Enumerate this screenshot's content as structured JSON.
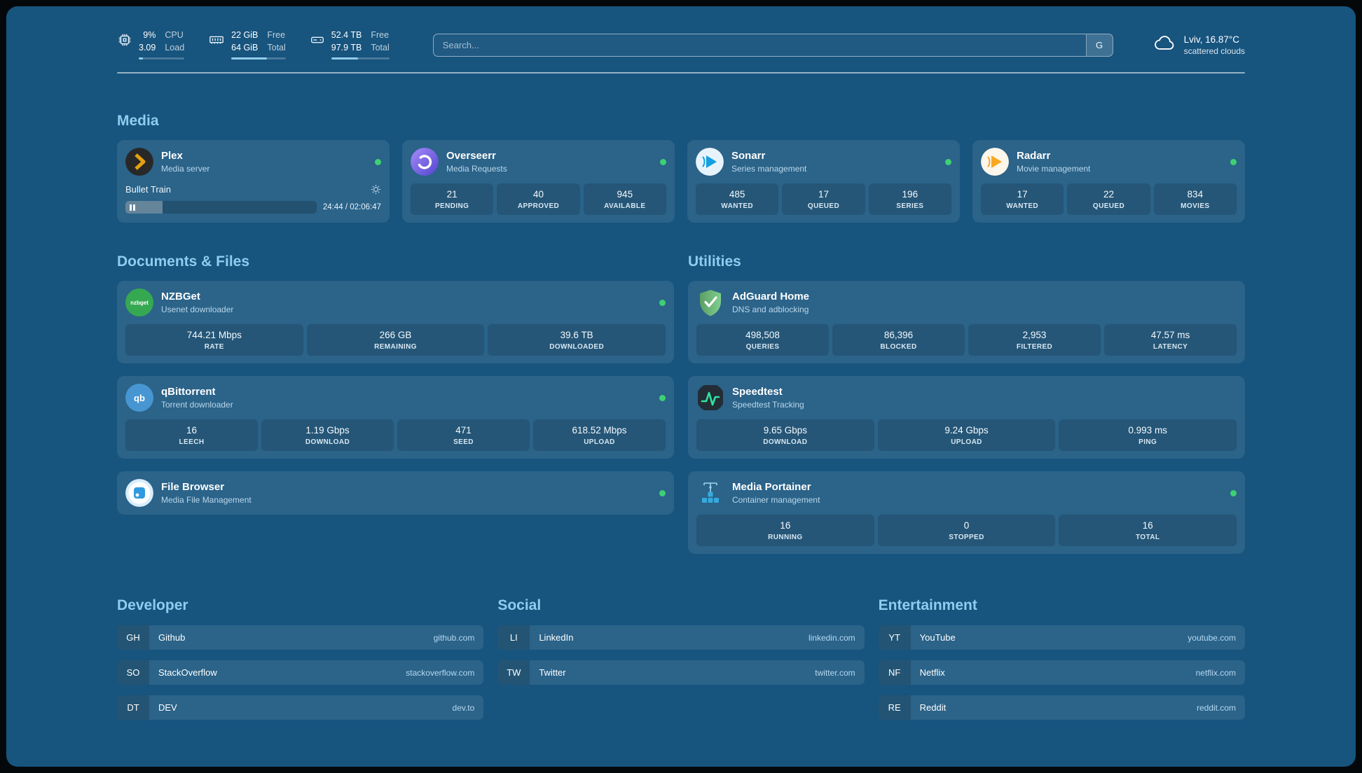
{
  "colors": {
    "background": "#17547e",
    "accent_heading": "#8fcdf0",
    "status_green": "#3ed173",
    "plex_orange": "#e5a00d"
  },
  "topbar": {
    "resources": [
      {
        "name": "cpu",
        "values": [
          "9%",
          "3.09"
        ],
        "labels": [
          "CPU",
          "Load"
        ],
        "fill": 9
      },
      {
        "name": "memory",
        "values": [
          "22 GiB",
          "64 GiB"
        ],
        "labels": [
          "Free",
          "Total"
        ],
        "fill": 66
      },
      {
        "name": "disk",
        "values": [
          "52.4 TB",
          "97.9 TB"
        ],
        "labels": [
          "Free",
          "Total"
        ],
        "fill": 46
      }
    ],
    "search": {
      "placeholder": "Search...",
      "provider_button": "G"
    },
    "weather": {
      "location": "Lviv, 16.87°C",
      "condition": "scattered clouds"
    }
  },
  "media": {
    "heading": "Media",
    "plex": {
      "name": "Plex",
      "subtitle": "Media server",
      "now_playing": "Bullet Train",
      "time": "24:44 / 02:06:47",
      "progress_pct": 19.5
    },
    "overseerr": {
      "name": "Overseerr",
      "subtitle": "Media Requests",
      "stats": [
        {
          "value": "21",
          "label": "PENDING"
        },
        {
          "value": "40",
          "label": "APPROVED"
        },
        {
          "value": "945",
          "label": "AVAILABLE"
        }
      ]
    },
    "sonarr": {
      "name": "Sonarr",
      "subtitle": "Series management",
      "stats": [
        {
          "value": "485",
          "label": "WANTED"
        },
        {
          "value": "17",
          "label": "QUEUED"
        },
        {
          "value": "196",
          "label": "SERIES"
        }
      ]
    },
    "radarr": {
      "name": "Radarr",
      "subtitle": "Movie management",
      "stats": [
        {
          "value": "17",
          "label": "WANTED"
        },
        {
          "value": "22",
          "label": "QUEUED"
        },
        {
          "value": "834",
          "label": "MOVIES"
        }
      ]
    }
  },
  "documents": {
    "heading": "Documents & Files",
    "nzbget": {
      "name": "NZBGet",
      "subtitle": "Usenet downloader",
      "icon_text": "nzbget",
      "stats": [
        {
          "value": "744.21 Mbps",
          "label": "RATE"
        },
        {
          "value": "266 GB",
          "label": "REMAINING"
        },
        {
          "value": "39.6 TB",
          "label": "DOWNLOADED"
        }
      ]
    },
    "qbittorrent": {
      "name": "qBittorrent",
      "subtitle": "Torrent downloader",
      "icon_text": "qb",
      "stats": [
        {
          "value": "16",
          "label": "LEECH"
        },
        {
          "value": "1.19 Gbps",
          "label": "DOWNLOAD"
        },
        {
          "value": "471",
          "label": "SEED"
        },
        {
          "value": "618.52 Mbps",
          "label": "UPLOAD"
        }
      ]
    },
    "filebrowser": {
      "name": "File Browser",
      "subtitle": "Media File Management"
    }
  },
  "utilities": {
    "heading": "Utilities",
    "adguard": {
      "name": "AdGuard Home",
      "subtitle": "DNS and adblocking",
      "stats": [
        {
          "value": "498,508",
          "label": "QUERIES"
        },
        {
          "value": "86,396",
          "label": "BLOCKED"
        },
        {
          "value": "2,953",
          "label": "FILTERED"
        },
        {
          "value": "47.57 ms",
          "label": "LATENCY"
        }
      ]
    },
    "speedtest": {
      "name": "Speedtest",
      "subtitle": "Speedtest Tracking",
      "stats": [
        {
          "value": "9.65 Gbps",
          "label": "DOWNLOAD"
        },
        {
          "value": "9.24 Gbps",
          "label": "UPLOAD"
        },
        {
          "value": "0.993 ms",
          "label": "PING"
        }
      ]
    },
    "portainer": {
      "name": "Media Portainer",
      "subtitle": "Container management",
      "stats": [
        {
          "value": "16",
          "label": "RUNNING"
        },
        {
          "value": "0",
          "label": "STOPPED"
        },
        {
          "value": "16",
          "label": "TOTAL"
        }
      ]
    }
  },
  "bookmarks": {
    "groups": [
      {
        "heading": "Developer",
        "items": [
          {
            "abbr": "GH",
            "name": "Github",
            "domain": "github.com"
          },
          {
            "abbr": "SO",
            "name": "StackOverflow",
            "domain": "stackoverflow.com"
          },
          {
            "abbr": "DT",
            "name": "DEV",
            "domain": "dev.to"
          }
        ]
      },
      {
        "heading": "Social",
        "items": [
          {
            "abbr": "LI",
            "name": "LinkedIn",
            "domain": "linkedin.com"
          },
          {
            "abbr": "TW",
            "name": "Twitter",
            "domain": "twitter.com"
          }
        ]
      },
      {
        "heading": "Entertainment",
        "items": [
          {
            "abbr": "YT",
            "name": "YouTube",
            "domain": "youtube.com"
          },
          {
            "abbr": "NF",
            "name": "Netflix",
            "domain": "netflix.com"
          },
          {
            "abbr": "RE",
            "name": "Reddit",
            "domain": "reddit.com"
          }
        ]
      }
    ]
  }
}
